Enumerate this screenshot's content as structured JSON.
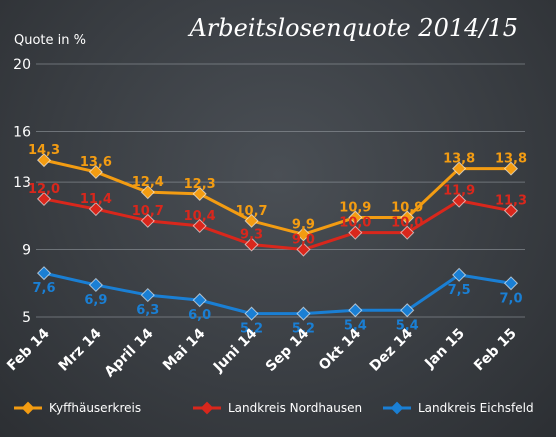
{
  "chart_data": {
    "type": "line",
    "title": "Arbeitslosenquote 2014/15",
    "ylabel": "Quote in %",
    "xlabel": "",
    "ylim": [
      5,
      20
    ],
    "yticks": [
      "5",
      "9",
      "13",
      "16",
      "20"
    ],
    "grid": true,
    "legend": "bottom",
    "categories": [
      "Feb 14",
      "Mrz 14",
      "April 14",
      "Mai 14",
      "Juni 14",
      "Sep 14",
      "Okt 14",
      "Dez 14",
      "Jan 15",
      "Feb 15"
    ],
    "series": [
      {
        "name": "Kyffhäuserkreis",
        "color": "#f39c12",
        "values": [
          14.3,
          13.6,
          12.4,
          12.3,
          10.7,
          9.9,
          10.9,
          10.9,
          13.8,
          13.8
        ],
        "labels": [
          "14,3",
          "13,6",
          "12,4",
          "12,3",
          "10,7",
          "9,9",
          "10,9",
          "10,9",
          "13,8",
          "13,8"
        ]
      },
      {
        "name": "Landkreis Nordhausen",
        "color": "#d9271c",
        "values": [
          12.0,
          11.4,
          10.7,
          10.4,
          9.3,
          9.0,
          10.0,
          10.0,
          11.9,
          11.3
        ],
        "labels": [
          "12,0",
          "11,4",
          "10,7",
          "10,4",
          "9,3",
          "9,0",
          "10,0",
          "10,0",
          "11,9",
          "11,3"
        ]
      },
      {
        "name": "Landkreis Eichsfeld",
        "color": "#1a7fd4",
        "values": [
          7.6,
          6.9,
          6.3,
          6.0,
          5.2,
          5.2,
          5.4,
          5.4,
          7.5,
          7.0
        ],
        "labels": [
          "7,6",
          "6,9",
          "6,3",
          "6,0",
          "5,2",
          "5,2",
          "5,4",
          "5,4",
          "7,5",
          "7,0"
        ]
      }
    ]
  }
}
